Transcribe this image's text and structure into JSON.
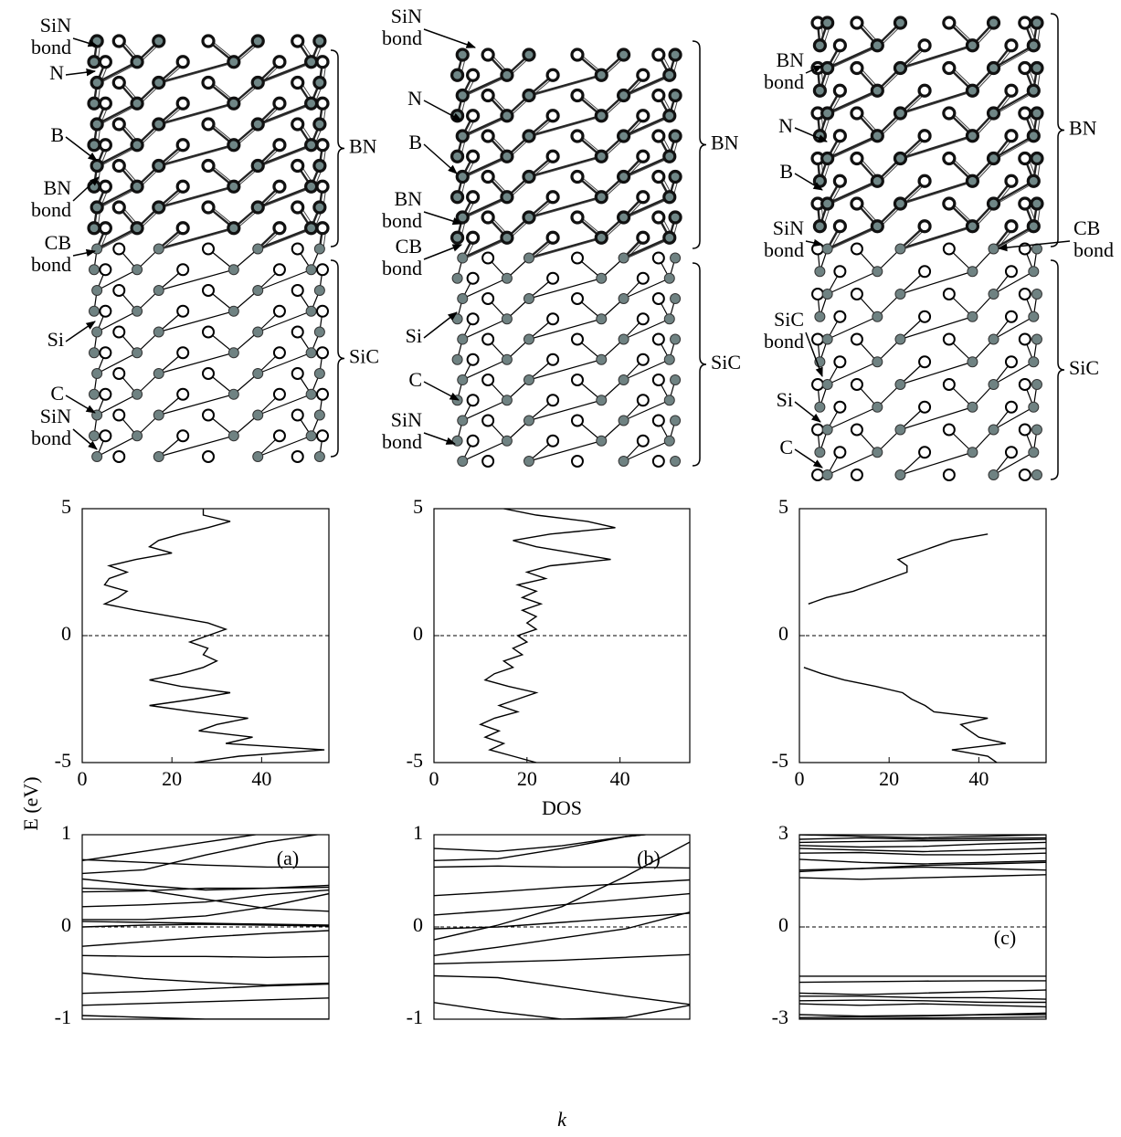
{
  "structures": [
    {
      "labels": [
        [
          "SiN",
          "bond"
        ],
        [
          "N"
        ],
        [
          "B"
        ],
        [
          "BN",
          "bond"
        ],
        [
          "CB",
          "bond"
        ],
        [
          "Si"
        ],
        [
          "C"
        ],
        [
          "SiN",
          "bond"
        ]
      ],
      "brackets": [
        "BN",
        "SiC"
      ]
    },
    {
      "labels": [
        [
          "SiN",
          "bond"
        ],
        [
          "N"
        ],
        [
          "B"
        ],
        [
          "BN",
          "bond"
        ],
        [
          "CB",
          "bond"
        ],
        [
          "Si"
        ],
        [
          "C"
        ],
        [
          "SiN",
          "bond"
        ]
      ],
      "brackets": [
        "BN",
        "SiC"
      ]
    },
    {
      "labels": [
        [
          "BN",
          "bond"
        ],
        [
          "N"
        ],
        [
          "B"
        ],
        [
          "SiN",
          "bond"
        ],
        [
          "CB",
          "bond"
        ],
        [
          "SiC",
          "bond"
        ],
        [
          "Si"
        ],
        [
          "C"
        ]
      ],
      "brackets": [
        "BN",
        "SiC"
      ]
    }
  ],
  "chart_data": [
    {
      "type": "line",
      "orientation": "horizontal",
      "y": [
        5,
        4.75,
        4.5,
        4.25,
        4,
        3.75,
        3.5,
        3.25,
        3,
        2.75,
        2.5,
        2.25,
        2,
        1.75,
        1.5,
        1.25,
        1,
        0.75,
        0.5,
        0.25,
        0,
        -0.25,
        -0.5,
        -0.75,
        -1,
        -1.25,
        -1.5,
        -1.75,
        -2,
        -2.25,
        -2.5,
        -2.75,
        -3,
        -3.25,
        -3.5,
        -3.75,
        -4,
        -4.25,
        -4.5,
        -4.75,
        -5
      ],
      "series": [
        {
          "color": "#000000",
          "values": [
            27,
            27,
            33,
            28,
            22,
            17,
            15,
            20,
            12,
            6,
            10,
            6,
            5,
            10,
            8,
            5,
            12,
            20,
            28,
            32,
            28,
            24,
            28,
            27,
            30,
            27,
            22,
            15,
            22,
            33,
            25,
            15,
            25,
            37,
            30,
            26,
            38,
            32,
            54,
            35,
            25
          ]
        }
      ],
      "xlim": [
        0,
        55
      ],
      "xticks": [
        0,
        20,
        40
      ],
      "ylim": [
        -5,
        5
      ],
      "yticks": [
        5,
        0,
        -5
      ],
      "reference_line": 0
    },
    {
      "type": "line",
      "orientation": "horizontal",
      "xlabel": "DOS",
      "y": [
        5,
        4.75,
        4.5,
        4.25,
        4,
        3.75,
        3.5,
        3.25,
        3,
        2.75,
        2.5,
        2.25,
        2,
        1.75,
        1.5,
        1.25,
        1,
        0.75,
        0.5,
        0.25,
        0,
        -0.25,
        -0.5,
        -0.75,
        -1,
        -1.25,
        -1.5,
        -1.75,
        -2,
        -2.25,
        -2.5,
        -2.75,
        -3,
        -3.25,
        -3.5,
        -3.75,
        -4,
        -4.25,
        -4.5,
        -4.75,
        -5
      ],
      "series": [
        {
          "color": "#000000",
          "values": [
            15,
            22,
            33,
            39,
            25,
            17,
            22,
            30,
            38,
            25,
            20,
            24,
            18,
            22,
            19,
            23,
            19,
            22,
            20,
            22,
            18,
            20,
            17,
            19,
            15,
            17,
            13,
            11,
            16,
            22,
            18,
            14,
            18,
            13,
            10,
            14,
            11,
            15,
            12,
            17,
            22
          ]
        }
      ],
      "xlim": [
        0,
        55
      ],
      "xticks": [
        0,
        20,
        40
      ],
      "ylim": [
        -5,
        5
      ],
      "yticks": [
        5,
        0,
        -5
      ],
      "reference_line": 0
    },
    {
      "type": "line",
      "orientation": "horizontal",
      "y": [
        5,
        4.75,
        4.5,
        4.25,
        4,
        3.75,
        3.5,
        3.25,
        3,
        2.75,
        2.5,
        2.25,
        2,
        1.75,
        1.5,
        1.25,
        1,
        0.75,
        0.5,
        0.25,
        0,
        -0.25,
        -0.5,
        -0.75,
        -1,
        -1.25,
        -1.5,
        -1.75,
        -2,
        -2.25,
        -2.5,
        -2.75,
        -3,
        -3.25,
        -3.5,
        -3.75,
        -4,
        -4.25,
        -4.5,
        -4.75,
        -5
      ],
      "series": [
        {
          "color": "#000000",
          "values": [
            null,
            null,
            null,
            null,
            42,
            34,
            30,
            26,
            22,
            24,
            24,
            20,
            16,
            12,
            6,
            2,
            null,
            null,
            null,
            null,
            null,
            null,
            null,
            null,
            null,
            1,
            5,
            10,
            17,
            23,
            25,
            28,
            30,
            42,
            36,
            38,
            40,
            46,
            34,
            42,
            44
          ]
        }
      ],
      "xlim": [
        0,
        55
      ],
      "xticks": [
        0,
        20,
        40
      ],
      "ylim": [
        -5,
        5
      ],
      "yticks": [
        5,
        0,
        -5
      ],
      "reference_line": 0
    },
    {
      "type": "line",
      "label": "(a)",
      "ylabel": "E (eV)",
      "x": [
        0,
        0.25,
        0.5,
        0.75,
        1
      ],
      "series": [
        {
          "color": "#000000",
          "values": [
            0.72,
            0.82,
            0.92,
            1.02,
            1.1
          ]
        },
        {
          "color": "#000000",
          "values": [
            0.58,
            0.62,
            0.78,
            0.92,
            1.02
          ]
        },
        {
          "color": "#000000",
          "values": [
            0.73,
            0.7,
            0.67,
            0.65,
            0.65
          ]
        },
        {
          "color": "#000000",
          "values": [
            0.52,
            0.45,
            0.4,
            0.42,
            0.45
          ]
        },
        {
          "color": "#000000",
          "values": [
            0.38,
            0.39,
            0.42,
            0.42,
            0.43
          ]
        },
        {
          "color": "#000000",
          "values": [
            0.22,
            0.24,
            0.27,
            0.35,
            0.4
          ]
        },
        {
          "color": "#000000",
          "values": [
            0.42,
            0.4,
            0.3,
            0.2,
            0.17
          ]
        },
        {
          "color": "#000000",
          "values": [
            0.08,
            0.08,
            0.12,
            0.22,
            0.36
          ]
        },
        {
          "color": "#000000",
          "values": [
            0.06,
            0.05,
            0.04,
            0.03,
            0.02
          ]
        },
        {
          "color": "#000000",
          "values": [
            0,
            0.02,
            0.03,
            0.02,
            0.01
          ]
        },
        {
          "color": "#000000",
          "values": [
            -0.21,
            -0.16,
            -0.11,
            -0.07,
            -0.04
          ]
        },
        {
          "color": "#000000",
          "values": [
            -0.31,
            -0.32,
            -0.32,
            -0.33,
            -0.32
          ]
        },
        {
          "color": "#000000",
          "values": [
            -0.5,
            -0.56,
            -0.6,
            -0.63,
            -0.61
          ]
        },
        {
          "color": "#000000",
          "values": [
            -0.72,
            -0.7,
            -0.67,
            -0.64,
            -0.62
          ]
        },
        {
          "color": "#000000",
          "values": [
            -0.85,
            -0.83,
            -0.81,
            -0.79,
            -0.77
          ]
        },
        {
          "color": "#000000",
          "values": [
            -0.96,
            -0.98,
            -1,
            -1,
            -1
          ]
        }
      ],
      "xlim": [
        0,
        1
      ],
      "ylim": [
        -1,
        1
      ],
      "yticks": [
        1,
        0,
        -1
      ],
      "reference_line": 0
    },
    {
      "type": "line",
      "label": "(b)",
      "xlabel": "k",
      "x": [
        0,
        0.25,
        0.5,
        0.75,
        1
      ],
      "series": [
        {
          "color": "#000000",
          "values": [
            0.85,
            0.82,
            0.88,
            0.98,
            1.05
          ]
        },
        {
          "color": "#000000",
          "values": [
            0.72,
            0.74,
            0.85,
            0.98,
            1.05
          ]
        },
        {
          "color": "#000000",
          "values": [
            0.65,
            0.66,
            0.65,
            0.65,
            0.64
          ]
        },
        {
          "color": "#000000",
          "values": [
            0.34,
            0.38,
            0.43,
            0.47,
            0.51
          ]
        },
        {
          "color": "#000000",
          "values": [
            0.13,
            0.18,
            0.24,
            0.3,
            0.36
          ]
        },
        {
          "color": "#000000",
          "values": [
            -0.14,
            0.02,
            0.22,
            0.55,
            0.92
          ]
        },
        {
          "color": "#000000",
          "values": [
            -0.02,
            0,
            0.05,
            0.1,
            0.15
          ]
        },
        {
          "color": "#000000",
          "values": [
            -0.31,
            -0.22,
            -0.12,
            -0.02,
            0.16
          ]
        },
        {
          "color": "#000000",
          "values": [
            -0.4,
            -0.38,
            -0.36,
            -0.33,
            -0.3
          ]
        },
        {
          "color": "#000000",
          "values": [
            -0.53,
            -0.55,
            -0.65,
            -0.75,
            -0.84
          ]
        },
        {
          "color": "#000000",
          "values": [
            -0.82,
            -0.92,
            -1,
            -0.98,
            -0.85
          ]
        }
      ],
      "xlim": [
        0,
        1
      ],
      "ylim": [
        -1,
        1
      ],
      "yticks": [
        1,
        0,
        -1
      ],
      "reference_line": 0
    },
    {
      "type": "line",
      "label": "(c)",
      "x": [
        0,
        0.25,
        0.5,
        0.75,
        1
      ],
      "series": [
        {
          "color": "#000000",
          "values": [
            3,
            2.95,
            2.9,
            2.95,
            3
          ]
        },
        {
          "color": "#000000",
          "values": [
            2.85,
            2.9,
            2.85,
            2.88,
            2.9
          ]
        },
        {
          "color": "#000000",
          "values": [
            2.75,
            2.78,
            2.8,
            2.82,
            2.85
          ]
        },
        {
          "color": "#000000",
          "values": [
            2.65,
            2.6,
            2.62,
            2.7,
            2.75
          ]
        },
        {
          "color": "#000000",
          "values": [
            2.55,
            2.5,
            2.45,
            2.5,
            2.55
          ]
        },
        {
          "color": "#000000",
          "values": [
            2.4,
            2.42,
            2.35,
            2.35,
            2.4
          ]
        },
        {
          "color": "#000000",
          "values": [
            2.2,
            2.1,
            2.05,
            2.1,
            2.15
          ]
        },
        {
          "color": "#000000",
          "values": [
            1.85,
            1.9,
            2,
            2.05,
            2.1
          ]
        },
        {
          "color": "#000000",
          "values": [
            1.8,
            1.9,
            1.95,
            1.9,
            1.85
          ]
        },
        {
          "color": "#000000",
          "values": [
            1.6,
            1.55,
            1.6,
            1.65,
            1.7
          ]
        },
        {
          "color": "#000000",
          "values": [
            -1.6,
            -1.6,
            -1.6,
            -1.6,
            -1.6
          ]
        },
        {
          "color": "#000000",
          "values": [
            -1.8,
            -1.78,
            -1.76,
            -1.75,
            -1.75
          ]
        },
        {
          "color": "#000000",
          "values": [
            -2.15,
            -2.2,
            -2.15,
            -2.1,
            -2.05
          ]
        },
        {
          "color": "#000000",
          "values": [
            -2.25,
            -2.25,
            -2.3,
            -2.3,
            -2.35
          ]
        },
        {
          "color": "#000000",
          "values": [
            -2.4,
            -2.38,
            -2.4,
            -2.45,
            -2.45
          ]
        },
        {
          "color": "#000000",
          "values": [
            -2.5,
            -2.55,
            -2.5,
            -2.55,
            -2.6
          ]
        },
        {
          "color": "#000000",
          "values": [
            -2.85,
            -2.9,
            -2.88,
            -2.85,
            -2.8
          ]
        },
        {
          "color": "#000000",
          "values": [
            -2.95,
            -2.92,
            -2.9,
            -2.85,
            -2.85
          ]
        },
        {
          "color": "#000000",
          "values": [
            -3,
            -2.98,
            -2.96,
            -2.95,
            -2.93
          ]
        }
      ],
      "xlim": [
        0,
        1
      ],
      "ylim": [
        -3,
        3
      ],
      "yticks": [
        3,
        0,
        -3
      ],
      "reference_line": 0
    }
  ]
}
